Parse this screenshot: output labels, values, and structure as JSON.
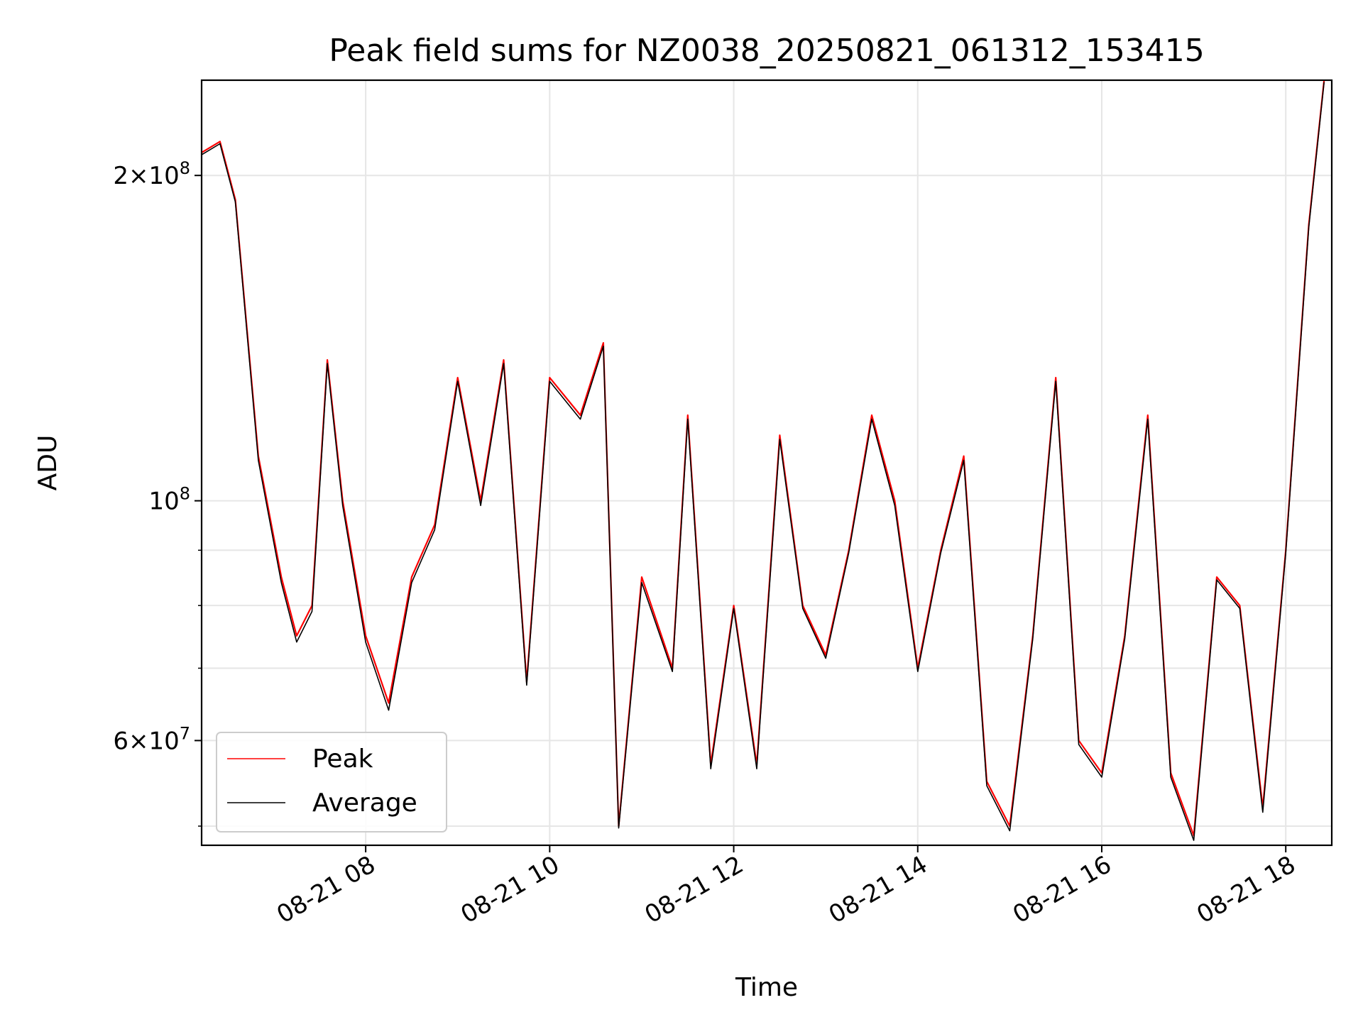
{
  "chart_data": {
    "type": "line",
    "title": "Peak field sums for NZ0038_20250821_061312_153415",
    "xlabel": "Time",
    "ylabel": "ADU",
    "y_scale": "log",
    "ylim": [
      48000000,
      245000000
    ],
    "xlim": [
      "2025-08-21 06:13",
      "2025-08-21 18:30"
    ],
    "x_ticks": [
      "08-21 08",
      "08-21 10",
      "08-21 12",
      "08-21 14",
      "08-21 16",
      "08-21 18"
    ],
    "x_tick_values": [
      "2025-08-21 08:00",
      "2025-08-21 10:00",
      "2025-08-21 12:00",
      "2025-08-21 14:00",
      "2025-08-21 16:00",
      "2025-08-21 18:00"
    ],
    "y_major_ticks": [
      {
        "value": 60000000,
        "base": "6",
        "exp": "7"
      },
      {
        "value": 100000000,
        "base": "",
        "exp": "8"
      },
      {
        "value": 200000000,
        "base": "2",
        "exp": "8"
      }
    ],
    "grid": true,
    "legend_position": "lower-left",
    "series": [
      {
        "name": "Peak",
        "color": "#ff0000",
        "x": [
          "2025-08-21 06:13",
          "2025-08-21 06:25",
          "2025-08-21 06:35",
          "2025-08-21 06:50",
          "2025-08-21 07:05",
          "2025-08-21 07:15",
          "2025-08-21 07:25",
          "2025-08-21 07:35",
          "2025-08-21 07:45",
          "2025-08-21 08:00",
          "2025-08-21 08:15",
          "2025-08-21 08:30",
          "2025-08-21 08:45",
          "2025-08-21 09:00",
          "2025-08-21 09:15",
          "2025-08-21 09:30",
          "2025-08-21 09:45",
          "2025-08-21 10:00",
          "2025-08-21 10:20",
          "2025-08-21 10:35",
          "2025-08-21 10:45",
          "2025-08-21 11:00",
          "2025-08-21 11:20",
          "2025-08-21 11:30",
          "2025-08-21 11:45",
          "2025-08-21 12:00",
          "2025-08-21 12:15",
          "2025-08-21 12:30",
          "2025-08-21 12:45",
          "2025-08-21 13:00",
          "2025-08-21 13:15",
          "2025-08-21 13:30",
          "2025-08-21 13:45",
          "2025-08-21 14:00",
          "2025-08-21 14:15",
          "2025-08-21 14:30",
          "2025-08-21 14:45",
          "2025-08-21 15:00",
          "2025-08-21 15:15",
          "2025-08-21 15:30",
          "2025-08-21 15:45",
          "2025-08-21 16:00",
          "2025-08-21 16:15",
          "2025-08-21 16:30",
          "2025-08-21 16:45",
          "2025-08-21 17:00",
          "2025-08-21 17:15",
          "2025-08-21 17:30",
          "2025-08-21 17:45",
          "2025-08-21 18:00",
          "2025-08-21 18:15",
          "2025-08-21 18:25"
        ],
        "y": [
          210000000,
          215000000,
          190000000,
          110000000,
          85000000,
          75000000,
          80000000,
          135000000,
          100000000,
          75000000,
          65000000,
          85000000,
          95000000,
          130000000,
          100000000,
          135000000,
          68000000,
          130000000,
          120000000,
          140000000,
          50000000,
          85000000,
          70000000,
          120000000,
          57000000,
          80000000,
          57000000,
          115000000,
          80000000,
          72000000,
          90000000,
          120000000,
          100000000,
          70000000,
          90000000,
          110000000,
          55000000,
          50000000,
          75000000,
          130000000,
          60000000,
          56000000,
          75000000,
          120000000,
          56000000,
          49000000,
          85000000,
          80000000,
          52000000,
          90000000,
          180000000,
          245000000
        ]
      },
      {
        "name": "Average",
        "color": "#000000",
        "x": [
          "2025-08-21 06:13",
          "2025-08-21 06:25",
          "2025-08-21 06:35",
          "2025-08-21 06:50",
          "2025-08-21 07:05",
          "2025-08-21 07:15",
          "2025-08-21 07:25",
          "2025-08-21 07:35",
          "2025-08-21 07:45",
          "2025-08-21 08:00",
          "2025-08-21 08:15",
          "2025-08-21 08:30",
          "2025-08-21 08:45",
          "2025-08-21 09:00",
          "2025-08-21 09:15",
          "2025-08-21 09:30",
          "2025-08-21 09:45",
          "2025-08-21 10:00",
          "2025-08-21 10:20",
          "2025-08-21 10:35",
          "2025-08-21 10:45",
          "2025-08-21 11:00",
          "2025-08-21 11:20",
          "2025-08-21 11:30",
          "2025-08-21 11:45",
          "2025-08-21 12:00",
          "2025-08-21 12:15",
          "2025-08-21 12:30",
          "2025-08-21 12:45",
          "2025-08-21 13:00",
          "2025-08-21 13:15",
          "2025-08-21 13:30",
          "2025-08-21 13:45",
          "2025-08-21 14:00",
          "2025-08-21 14:15",
          "2025-08-21 14:30",
          "2025-08-21 14:45",
          "2025-08-21 15:00",
          "2025-08-21 15:15",
          "2025-08-21 15:30",
          "2025-08-21 15:45",
          "2025-08-21 16:00",
          "2025-08-21 16:15",
          "2025-08-21 16:30",
          "2025-08-21 16:45",
          "2025-08-21 17:00",
          "2025-08-21 17:15",
          "2025-08-21 17:30",
          "2025-08-21 17:45",
          "2025-08-21 18:00",
          "2025-08-21 18:15",
          "2025-08-21 18:25"
        ],
        "y": [
          209000000,
          214000000,
          189000000,
          109000000,
          84000000,
          74000000,
          79000000,
          134000000,
          99000000,
          74000000,
          64000000,
          84000000,
          94000000,
          129000000,
          99000000,
          134000000,
          67500000,
          129000000,
          119000000,
          139000000,
          49800000,
          84000000,
          69500000,
          119000000,
          56500000,
          79500000,
          56500000,
          114000000,
          79500000,
          71500000,
          89500000,
          119000000,
          99000000,
          69500000,
          89500000,
          109000000,
          54500000,
          49500000,
          74500000,
          129000000,
          59500000,
          55500000,
          74500000,
          119000000,
          55500000,
          48500000,
          84500000,
          79500000,
          51500000,
          89500000,
          179000000,
          244000000
        ]
      }
    ]
  }
}
